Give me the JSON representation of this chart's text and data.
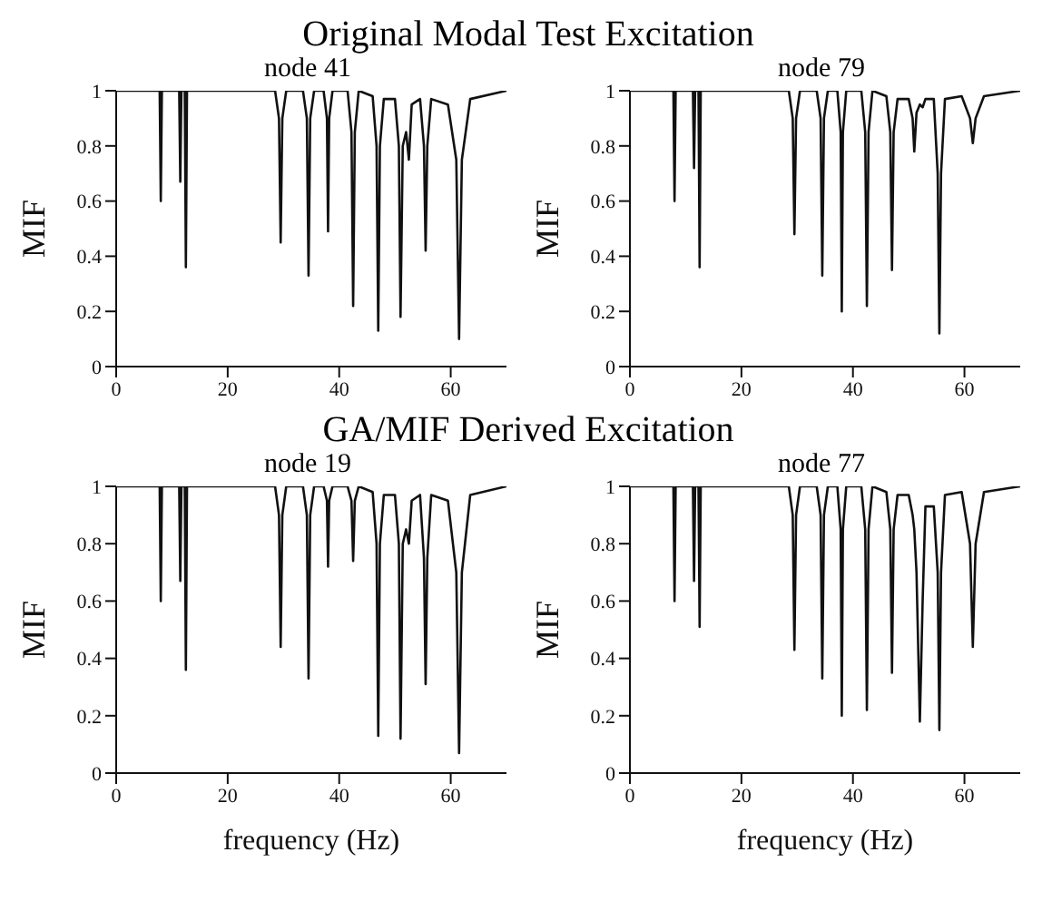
{
  "chart_data": [
    {
      "type": "line",
      "title": "node 41",
      "annotations": [
        "Original Modal Test Excitation"
      ],
      "ylabel": "MIF",
      "xlim": [
        0,
        70
      ],
      "xticks": [
        0,
        20,
        40,
        60
      ],
      "ylim": [
        0,
        1
      ],
      "yticks": [
        0,
        0.2,
        0.4,
        0.6,
        0.8,
        1
      ],
      "grid": false,
      "marker": "none",
      "line_style": "solid",
      "series": [
        {
          "color": "#111111",
          "x": [
            0,
            7.8,
            8,
            8.2,
            11.3,
            11.5,
            11.7,
            12.3,
            12.5,
            12.7,
            28.5,
            29.2,
            29.5,
            29.8,
            30.5,
            33.5,
            34.2,
            34.5,
            34.8,
            35.5,
            37.2,
            37.8,
            38,
            38.2,
            38.8,
            41.5,
            42.2,
            42.5,
            42.8,
            43.5,
            46,
            46.7,
            47,
            47.3,
            48,
            50,
            50.7,
            51,
            51.4,
            52,
            52.5,
            53,
            54.5,
            55.2,
            55.5,
            55.8,
            56.5,
            59.5,
            61,
            61.5,
            62,
            63.5,
            70
          ],
          "values": [
            1,
            1,
            0.6,
            1,
            1,
            0.67,
            1,
            1,
            0.36,
            1,
            1,
            0.9,
            0.45,
            0.9,
            1,
            1,
            0.9,
            0.33,
            0.9,
            1,
            1,
            0.9,
            0.49,
            0.9,
            1,
            1,
            0.85,
            0.22,
            0.85,
            1,
            0.98,
            0.8,
            0.13,
            0.8,
            0.97,
            0.97,
            0.8,
            0.18,
            0.8,
            0.85,
            0.75,
            0.95,
            0.97,
            0.8,
            0.42,
            0.8,
            0.97,
            0.95,
            0.75,
            0.1,
            0.75,
            0.97,
            1
          ]
        }
      ]
    },
    {
      "type": "line",
      "title": "node 79",
      "ylabel": "MIF",
      "xlim": [
        0,
        70
      ],
      "xticks": [
        0,
        20,
        40,
        60
      ],
      "ylim": [
        0,
        1
      ],
      "yticks": [
        0,
        0.2,
        0.4,
        0.6,
        0.8,
        1
      ],
      "grid": false,
      "marker": "none",
      "line_style": "solid",
      "series": [
        {
          "color": "#111111",
          "x": [
            0,
            7.8,
            8,
            8.2,
            11.3,
            11.5,
            11.7,
            12.3,
            12.5,
            12.7,
            28.5,
            29.2,
            29.5,
            29.8,
            30.5,
            33.5,
            34.2,
            34.5,
            34.8,
            35.5,
            37.2,
            37.8,
            38,
            38.2,
            38.8,
            41.5,
            42.2,
            42.5,
            42.8,
            43.5,
            46,
            46.7,
            47,
            47.3,
            48,
            50,
            50.7,
            51,
            51.4,
            52,
            52.5,
            53,
            54.5,
            55.2,
            55.5,
            55.8,
            56.5,
            59.5,
            61,
            61.5,
            62,
            63.5,
            70
          ],
          "values": [
            1,
            1,
            0.6,
            1,
            1,
            0.72,
            1,
            1,
            0.36,
            1,
            1,
            0.9,
            0.48,
            0.9,
            1,
            1,
            0.9,
            0.33,
            0.9,
            1,
            1,
            0.85,
            0.2,
            0.85,
            1,
            1,
            0.85,
            0.22,
            0.85,
            1,
            0.98,
            0.85,
            0.35,
            0.85,
            0.97,
            0.97,
            0.9,
            0.78,
            0.92,
            0.95,
            0.94,
            0.97,
            0.97,
            0.7,
            0.12,
            0.7,
            0.97,
            0.98,
            0.9,
            0.81,
            0.9,
            0.98,
            1
          ]
        }
      ]
    },
    {
      "type": "line",
      "title": "node 19",
      "annotations": [
        "GA/MIF Derived Excitation"
      ],
      "xlabel": "frequency (Hz)",
      "ylabel": "MIF",
      "xlim": [
        0,
        70
      ],
      "xticks": [
        0,
        20,
        40,
        60
      ],
      "ylim": [
        0,
        1
      ],
      "yticks": [
        0,
        0.2,
        0.4,
        0.6,
        0.8,
        1
      ],
      "grid": false,
      "marker": "none",
      "line_style": "solid",
      "series": [
        {
          "color": "#111111",
          "x": [
            0,
            7.8,
            8,
            8.2,
            11.3,
            11.5,
            11.7,
            12.3,
            12.5,
            12.7,
            28.5,
            29.2,
            29.5,
            29.8,
            30.5,
            33.5,
            34.2,
            34.5,
            34.8,
            35.5,
            37.2,
            37.8,
            38,
            38.2,
            38.8,
            41.5,
            42.2,
            42.5,
            42.8,
            43.5,
            46,
            46.7,
            47,
            47.3,
            48,
            50,
            50.7,
            51,
            51.4,
            52,
            52.5,
            53,
            54.5,
            55.2,
            55.5,
            55.8,
            56.5,
            59.5,
            61,
            61.5,
            62,
            63.5,
            70
          ],
          "values": [
            1,
            1,
            0.6,
            1,
            1,
            0.67,
            1,
            1,
            0.36,
            1,
            1,
            0.9,
            0.44,
            0.9,
            1,
            1,
            0.9,
            0.33,
            0.9,
            1,
            1,
            0.95,
            0.72,
            0.95,
            1,
            1,
            0.95,
            0.74,
            0.95,
            1,
            0.98,
            0.8,
            0.13,
            0.8,
            0.97,
            0.97,
            0.8,
            0.12,
            0.8,
            0.85,
            0.8,
            0.95,
            0.97,
            0.75,
            0.31,
            0.75,
            0.97,
            0.95,
            0.7,
            0.07,
            0.7,
            0.97,
            1
          ]
        }
      ]
    },
    {
      "type": "line",
      "title": "node 77",
      "xlabel": "frequency (Hz)",
      "ylabel": "MIF",
      "xlim": [
        0,
        70
      ],
      "xticks": [
        0,
        20,
        40,
        60
      ],
      "ylim": [
        0,
        1
      ],
      "yticks": [
        0,
        0.2,
        0.4,
        0.6,
        0.8,
        1
      ],
      "grid": false,
      "marker": "none",
      "line_style": "solid",
      "series": [
        {
          "color": "#111111",
          "x": [
            0,
            7.8,
            8,
            8.2,
            11.3,
            11.5,
            11.7,
            12.3,
            12.5,
            12.7,
            28.5,
            29.2,
            29.5,
            29.8,
            30.5,
            33.5,
            34.2,
            34.5,
            34.8,
            35.5,
            37.2,
            37.8,
            38,
            38.2,
            38.8,
            41.5,
            42.2,
            42.5,
            42.8,
            43.5,
            46,
            46.7,
            47,
            47.3,
            48,
            50,
            50.7,
            51,
            51.4,
            52,
            52.5,
            53,
            54.5,
            55.2,
            55.5,
            55.8,
            56.5,
            59.5,
            61,
            61.5,
            62,
            63.5,
            70
          ],
          "values": [
            1,
            1,
            0.6,
            1,
            1,
            0.67,
            1,
            1,
            0.51,
            1,
            1,
            0.9,
            0.43,
            0.9,
            1,
            1,
            0.9,
            0.33,
            0.9,
            1,
            1,
            0.85,
            0.2,
            0.85,
            1,
            1,
            0.85,
            0.22,
            0.85,
            1,
            0.98,
            0.85,
            0.35,
            0.85,
            0.97,
            0.97,
            0.9,
            0.85,
            0.7,
            0.18,
            0.6,
            0.93,
            0.93,
            0.7,
            0.15,
            0.7,
            0.97,
            0.98,
            0.8,
            0.44,
            0.8,
            0.98,
            1
          ]
        }
      ]
    }
  ]
}
